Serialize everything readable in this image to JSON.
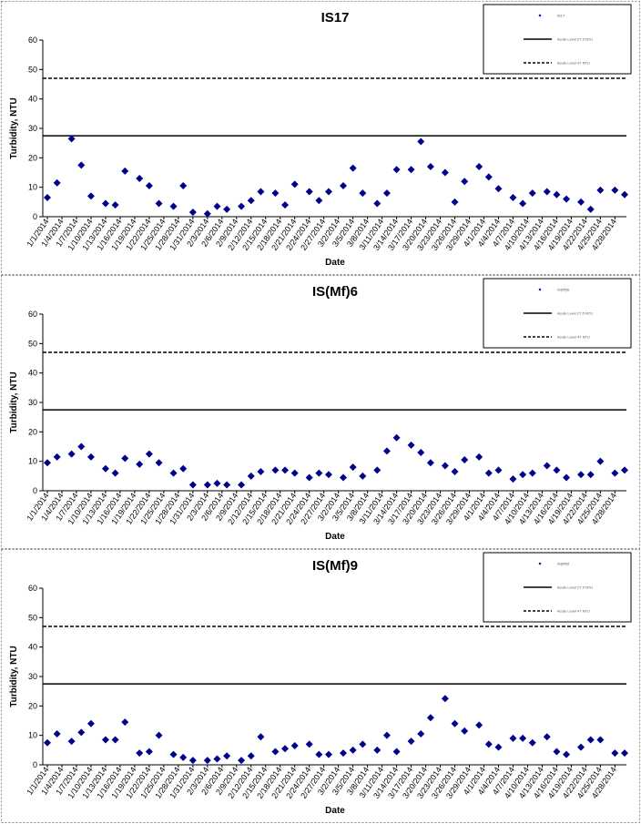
{
  "chart_data": [
    {
      "type": "scatter",
      "title": "IS17",
      "xlabel": "Date",
      "ylabel": "Turbidity, NTU",
      "x": [
        "1/1/2014",
        "1/3/2014",
        "1/6/2014",
        "1/8/2014",
        "1/10/2014",
        "1/13/2014",
        "1/15/2014",
        "1/17/2014",
        "1/20/2014",
        "1/22/2014",
        "1/24/2014",
        "1/27/2014",
        "1/29/2014",
        "1/31/2014",
        "2/3/2014",
        "2/5/2014",
        "2/7/2014",
        "2/10/2014",
        "2/12/2014",
        "2/14/2014",
        "2/17/2014",
        "2/19/2014",
        "2/21/2014",
        "2/24/2014",
        "2/26/2014",
        "2/28/2014",
        "3/3/2014",
        "3/5/2014",
        "3/7/2014",
        "3/10/2014",
        "3/12/2014",
        "3/14/2014",
        "3/17/2014",
        "3/19/2014",
        "3/21/2014",
        "3/24/2014",
        "3/26/2014",
        "3/28/2014",
        "3/31/2014",
        "4/2/2014",
        "4/4/2014",
        "4/7/2014",
        "4/9/2014",
        "4/11/2014",
        "4/14/2014",
        "4/16/2014",
        "4/18/2014",
        "4/21/2014",
        "4/23/2014",
        "4/25/2014",
        "4/28/2014",
        "4/30/2014"
      ],
      "series": [
        {
          "name": "IS17",
          "color": "#00008b",
          "marker": "diamond",
          "values": [
            6.5,
            11.5,
            26.5,
            17.5,
            7,
            4.5,
            4,
            15.5,
            13,
            10.5,
            4.5,
            3.5,
            10.5,
            1.5,
            1,
            3.5,
            2.5,
            3.5,
            5.5,
            8.5,
            8,
            4,
            11,
            8.5,
            5.5,
            8.5,
            10.5,
            16.5,
            8,
            4.5,
            8,
            16,
            16,
            25.5,
            17,
            15,
            5,
            12,
            17,
            13.5,
            9.5,
            6.5,
            4.5,
            8,
            8.5,
            7.5,
            6,
            5,
            2.5,
            9,
            9,
            7.5
          ]
        }
      ],
      "reference_lines": [
        {
          "name": "Acute Level 27.5 NTU",
          "value": 27.5,
          "style": "solid",
          "color": "#000000"
        },
        {
          "name": "Acute Level 47 NTU",
          "value": 47,
          "style": "dashed",
          "color": "#000000"
        }
      ],
      "xlim": [
        "1/1/2014",
        "4/30/2014"
      ],
      "xticks": [
        "1/1/2014",
        "1/4/2014",
        "1/7/2014",
        "1/10/2014",
        "1/13/2014",
        "1/16/2014",
        "1/19/2014",
        "1/22/2014",
        "1/25/2014",
        "1/28/2014",
        "1/31/2014",
        "2/3/2014",
        "2/6/2014",
        "2/9/2014",
        "2/12/2014",
        "2/15/2014",
        "2/18/2014",
        "2/21/2014",
        "2/24/2014",
        "2/27/2014",
        "3/2/2014",
        "3/5/2014",
        "3/8/2014",
        "3/11/2014",
        "3/14/2014",
        "3/17/2014",
        "3/20/2014",
        "3/23/2014",
        "3/26/2014",
        "3/29/2014",
        "4/1/2014",
        "4/4/2014",
        "4/7/2014",
        "4/10/2014",
        "4/13/2014",
        "4/16/2014",
        "4/19/2014",
        "4/22/2014",
        "4/25/2014",
        "4/28/2014"
      ],
      "ylim": [
        0,
        60
      ],
      "yticks": [
        0,
        10,
        20,
        30,
        40,
        50,
        60
      ],
      "grid": false,
      "legend": "top-right"
    },
    {
      "type": "scatter",
      "title": "IS(Mf)6",
      "xlabel": "Date",
      "ylabel": "Turbidity, NTU",
      "x": [
        "1/1/2014",
        "1/3/2014",
        "1/6/2014",
        "1/8/2014",
        "1/10/2014",
        "1/13/2014",
        "1/15/2014",
        "1/17/2014",
        "1/20/2014",
        "1/22/2014",
        "1/24/2014",
        "1/27/2014",
        "1/29/2014",
        "1/31/2014",
        "2/3/2014",
        "2/5/2014",
        "2/7/2014",
        "2/10/2014",
        "2/12/2014",
        "2/14/2014",
        "2/17/2014",
        "2/19/2014",
        "2/21/2014",
        "2/24/2014",
        "2/26/2014",
        "2/28/2014",
        "3/3/2014",
        "3/5/2014",
        "3/7/2014",
        "3/10/2014",
        "3/12/2014",
        "3/14/2014",
        "3/17/2014",
        "3/19/2014",
        "3/21/2014",
        "3/24/2014",
        "3/26/2014",
        "3/28/2014",
        "3/31/2014",
        "4/2/2014",
        "4/4/2014",
        "4/7/2014",
        "4/9/2014",
        "4/11/2014",
        "4/14/2014",
        "4/16/2014",
        "4/18/2014",
        "4/21/2014",
        "4/23/2014",
        "4/25/2014",
        "4/28/2014",
        "4/30/2014"
      ],
      "series": [
        {
          "name": "IS(Mf)6",
          "color": "#00008b",
          "marker": "diamond",
          "values": [
            9.5,
            11.5,
            12.5,
            15,
            11.5,
            7.5,
            6,
            11,
            9,
            12.5,
            9.5,
            6,
            7.5,
            2,
            2,
            2.5,
            2,
            2,
            5,
            6.5,
            7,
            7,
            6,
            4.5,
            6,
            5.5,
            4.5,
            8,
            5,
            7,
            13.5,
            18,
            15.5,
            13,
            9.5,
            8.5,
            6.5,
            10.5,
            11.5,
            6,
            7,
            4,
            5.5,
            6,
            8.5,
            7,
            4.5,
            5.5,
            5.5,
            10,
            6,
            7
          ]
        }
      ],
      "reference_lines": [
        {
          "name": "Acute Level 27.5 NTU",
          "value": 27.5,
          "style": "solid",
          "color": "#000000"
        },
        {
          "name": "Acute Level 47 NTU",
          "value": 47,
          "style": "dashed",
          "color": "#000000"
        }
      ],
      "xlim": [
        "1/1/2014",
        "4/30/2014"
      ],
      "xticks": [
        "1/1/2014",
        "1/4/2014",
        "1/7/2014",
        "1/10/2014",
        "1/13/2014",
        "1/16/2014",
        "1/19/2014",
        "1/22/2014",
        "1/25/2014",
        "1/28/2014",
        "1/31/2014",
        "2/3/2014",
        "2/6/2014",
        "2/9/2014",
        "2/12/2014",
        "2/15/2014",
        "2/18/2014",
        "2/21/2014",
        "2/24/2014",
        "2/27/2014",
        "3/2/2014",
        "3/5/2014",
        "3/8/2014",
        "3/11/2014",
        "3/14/2014",
        "3/17/2014",
        "3/20/2014",
        "3/23/2014",
        "3/26/2014",
        "3/29/2014",
        "4/1/2014",
        "4/4/2014",
        "4/7/2014",
        "4/10/2014",
        "4/13/2014",
        "4/16/2014",
        "4/19/2014",
        "4/22/2014",
        "4/25/2014",
        "4/28/2014"
      ],
      "ylim": [
        0,
        60
      ],
      "yticks": [
        0,
        10,
        20,
        30,
        40,
        50,
        60
      ],
      "grid": false,
      "legend": "top-right"
    },
    {
      "type": "scatter",
      "title": "IS(Mf)9",
      "xlabel": "Date",
      "ylabel": "Turbidity, NTU",
      "x": [
        "1/1/2014",
        "1/3/2014",
        "1/6/2014",
        "1/8/2014",
        "1/10/2014",
        "1/13/2014",
        "1/15/2014",
        "1/17/2014",
        "1/20/2014",
        "1/22/2014",
        "1/24/2014",
        "1/27/2014",
        "1/29/2014",
        "1/31/2014",
        "2/3/2014",
        "2/5/2014",
        "2/7/2014",
        "2/10/2014",
        "2/12/2014",
        "2/14/2014",
        "2/17/2014",
        "2/19/2014",
        "2/21/2014",
        "2/24/2014",
        "2/26/2014",
        "2/28/2014",
        "3/3/2014",
        "3/5/2014",
        "3/7/2014",
        "3/10/2014",
        "3/12/2014",
        "3/14/2014",
        "3/17/2014",
        "3/19/2014",
        "3/21/2014",
        "3/24/2014",
        "3/26/2014",
        "3/28/2014",
        "3/31/2014",
        "4/2/2014",
        "4/4/2014",
        "4/7/2014",
        "4/9/2014",
        "4/11/2014",
        "4/14/2014",
        "4/16/2014",
        "4/18/2014",
        "4/21/2014",
        "4/23/2014",
        "4/25/2014",
        "4/28/2014",
        "4/30/2014"
      ],
      "series": [
        {
          "name": "IS(Mf)9",
          "color": "#00008b",
          "marker": "diamond",
          "values": [
            7.5,
            10.5,
            8,
            11,
            14,
            8.5,
            8.5,
            14.5,
            4,
            4.5,
            10,
            3.5,
            2.5,
            1.5,
            1.5,
            2,
            3,
            1.5,
            3,
            9.5,
            4.5,
            5.5,
            6.5,
            7,
            3.5,
            3.5,
            4,
            5,
            7,
            5,
            10,
            4.5,
            8,
            10.5,
            16,
            22.5,
            14,
            11.5,
            13.5,
            7,
            6,
            9,
            9,
            7.5,
            9.5,
            4.5,
            3.5,
            6,
            8.5,
            8.5,
            4,
            4
          ]
        }
      ],
      "reference_lines": [
        {
          "name": "Acute Level 27.5 NTU",
          "value": 27.5,
          "style": "solid",
          "color": "#000000"
        },
        {
          "name": "Acute Level 47 NTU",
          "value": 47,
          "style": "dashed",
          "color": "#000000"
        }
      ],
      "xlim": [
        "1/1/2014",
        "4/30/2014"
      ],
      "xticks": [
        "1/1/2014",
        "1/4/2014",
        "1/7/2014",
        "1/10/2014",
        "1/13/2014",
        "1/16/2014",
        "1/19/2014",
        "1/22/2014",
        "1/25/2014",
        "1/28/2014",
        "1/31/2014",
        "2/3/2014",
        "2/6/2014",
        "2/9/2014",
        "2/12/2014",
        "2/15/2014",
        "2/18/2014",
        "2/21/2014",
        "2/24/2014",
        "2/27/2014",
        "3/2/2014",
        "3/5/2014",
        "3/8/2014",
        "3/11/2014",
        "3/14/2014",
        "3/17/2014",
        "3/20/2014",
        "3/23/2014",
        "3/26/2014",
        "3/29/2014",
        "4/1/2014",
        "4/4/2014",
        "4/7/2014",
        "4/10/2014",
        "4/13/2014",
        "4/16/2014",
        "4/19/2014",
        "4/22/2014",
        "4/25/2014",
        "4/28/2014"
      ],
      "ylim": [
        0,
        60
      ],
      "yticks": [
        0,
        10,
        20,
        30,
        40,
        50,
        60
      ],
      "grid": false,
      "legend": "top-right"
    }
  ]
}
